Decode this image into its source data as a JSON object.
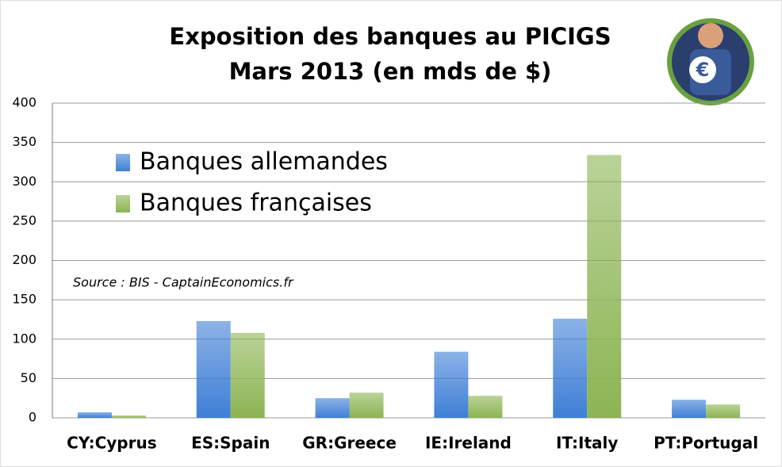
{
  "chart_data": {
    "type": "bar",
    "title": "Exposition des banques au PICIGS",
    "subtitle": "Mars 2013 (en mds de $)",
    "annotation": "Source : BIS - CaptainEconomics.fr",
    "categories": [
      "CY:Cyprus",
      "ES:Spain",
      "GR:Greece",
      "IE:Ireland",
      "IT:Italy",
      "PT:Portugal"
    ],
    "series": [
      {
        "name": "Banques allemandes",
        "color": "#3f7fd6",
        "values": [
          7,
          123,
          25,
          84,
          126,
          23
        ]
      },
      {
        "name": "Banques françaises",
        "color": "#8cb453",
        "values": [
          3,
          108,
          32,
          28,
          334,
          17
        ]
      }
    ],
    "ylim": [
      0,
      400
    ],
    "yticks": [
      0,
      50,
      100,
      150,
      200,
      250,
      300,
      350,
      400
    ],
    "grid": true
  }
}
